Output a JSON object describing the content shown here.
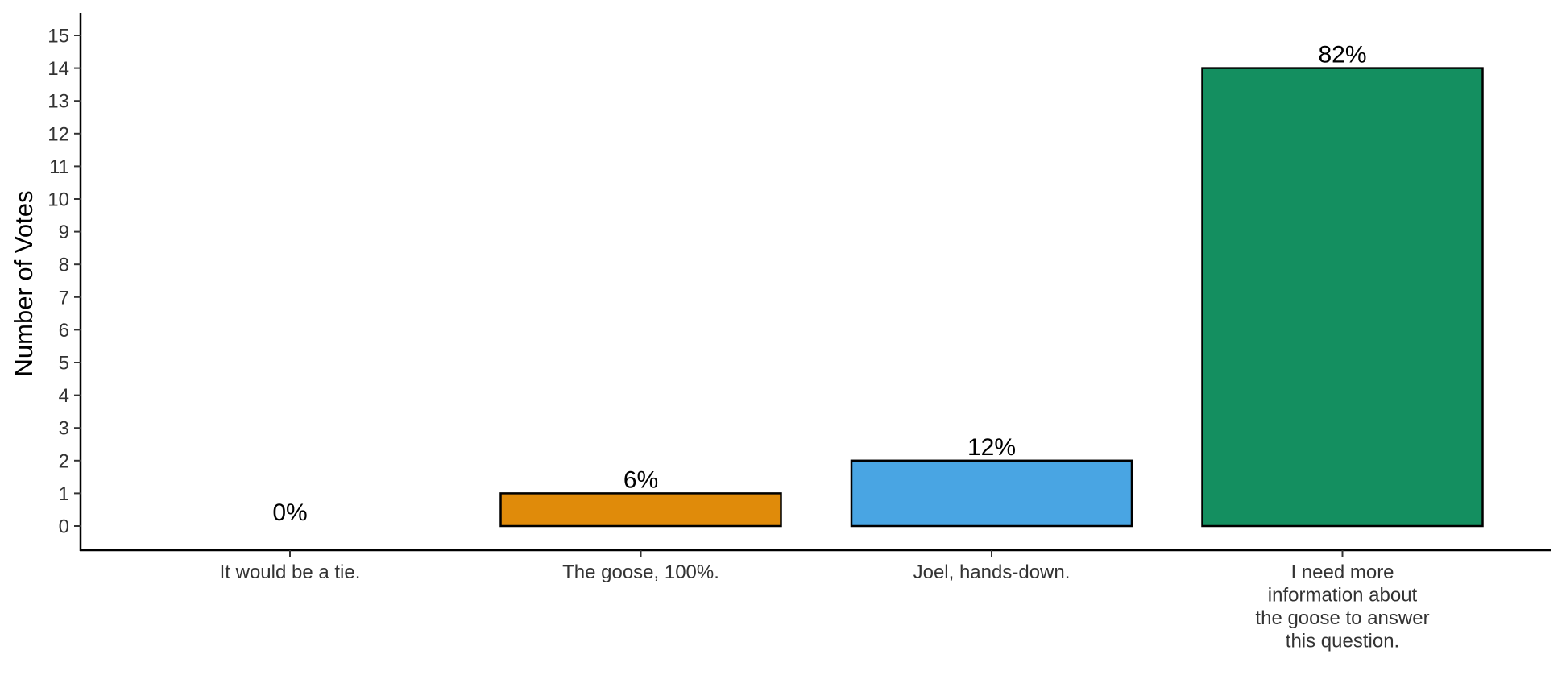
{
  "chart_data": {
    "type": "bar",
    "title": "",
    "xlabel": "",
    "ylabel": "Number of Votes",
    "ylim": [
      0,
      15
    ],
    "yticks": [
      0,
      1,
      2,
      3,
      4,
      5,
      6,
      7,
      8,
      9,
      10,
      11,
      12,
      13,
      14,
      15
    ],
    "grid": false,
    "legend": "none",
    "categories": [
      [
        "It would be a tie."
      ],
      [
        "The goose, 100%."
      ],
      [
        "Joel, hands-down."
      ],
      [
        "I need more",
        "information about",
        "the goose to answer",
        "this question."
      ]
    ],
    "values": [
      0,
      1,
      2,
      14
    ],
    "labels": [
      "0%",
      "6%",
      "12%",
      "82%"
    ],
    "colors": [
      "#CC79A7",
      "#E08B0A",
      "#49A5E3",
      "#148F60"
    ]
  }
}
